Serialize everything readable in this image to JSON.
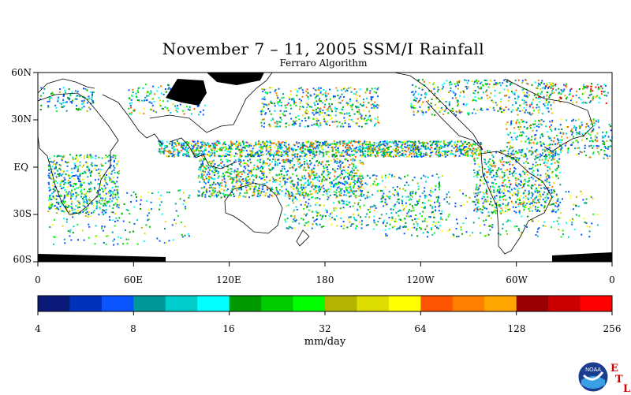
{
  "title": "November 7 – 11, 2005 SSM/I Rainfall",
  "subtitle": "Ferraro Algorithm",
  "map": {
    "lat_labels": [
      "60N",
      "30N",
      "EQ",
      "30S",
      "60S"
    ],
    "lon_labels": [
      "0",
      "60E",
      "120E",
      "180",
      "120W",
      "60W",
      "0"
    ]
  },
  "colorbar": {
    "tick_labels": [
      "4",
      "8",
      "16",
      "32",
      "64",
      "128",
      "256"
    ],
    "units": "mm/day",
    "colors": [
      "#0b1a78",
      "#0033bb",
      "#0a55ff",
      "#00999a",
      "#00cccc",
      "#00ffff",
      "#009900",
      "#00cc00",
      "#00ff00",
      "#b3b300",
      "#dddd00",
      "#ffff00",
      "#ff5500",
      "#ff7f00",
      "#ffa500",
      "#990000",
      "#cc0000",
      "#ff0000"
    ]
  },
  "logo": {
    "name": "noaa-logo",
    "text": "NOAA",
    "etl_letters": [
      "E",
      "T",
      "L"
    ]
  }
}
